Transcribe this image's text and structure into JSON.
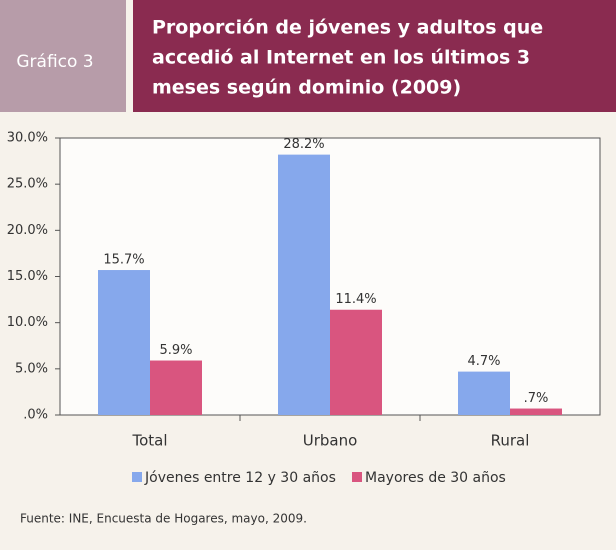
{
  "chart_data": {
    "type": "bar",
    "label": "Gráfico 3",
    "title": [
      "Proporción de jóvenes y adultos que",
      "accedió al Internet en los últimos 3",
      "meses según dominio (2009)"
    ],
    "categories": [
      "Total",
      "Urbano",
      "Rural"
    ],
    "series": [
      {
        "name": "Jóvenes entre 12 y 30 años",
        "color": "#86a8ec",
        "values": [
          15.7,
          28.2,
          4.7
        ],
        "value_labels": [
          "15.7%",
          "28.2%",
          "4.7%"
        ]
      },
      {
        "name": "Mayores de 30 años",
        "color": "#d9557f",
        "values": [
          5.9,
          11.4,
          0.7
        ],
        "value_labels": [
          "5.9%",
          "11.4%",
          ".7%"
        ]
      }
    ],
    "ylim": [
      0,
      30
    ],
    "yticks": [
      {
        "value": 0,
        "label": ".0%"
      },
      {
        "value": 5,
        "label": "5.0%"
      },
      {
        "value": 10,
        "label": "10.0%"
      },
      {
        "value": 15,
        "label": "15.0%"
      },
      {
        "value": 20,
        "label": "20.0%"
      },
      {
        "value": 25,
        "label": "25.0%"
      },
      {
        "value": 30,
        "label": "30.0%"
      }
    ],
    "grid": false,
    "legend": "bottom",
    "source": "Fuente: INE, Encuesta de Hogares, mayo, 2009."
  }
}
